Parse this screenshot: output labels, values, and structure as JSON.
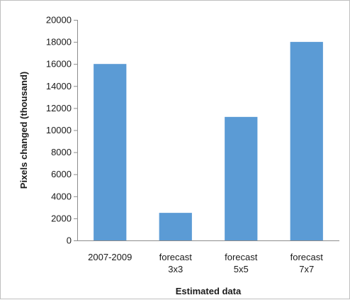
{
  "chart_data": {
    "type": "bar",
    "categories": [
      [
        "2007-2009"
      ],
      [
        "forecast",
        "3x3"
      ],
      [
        "forecast",
        "5x5"
      ],
      [
        "forecast",
        "7x7"
      ]
    ],
    "values": [
      16000,
      2500,
      11200,
      18000
    ],
    "title": "",
    "xlabel": "Estimated data",
    "ylabel": "Pixels changed (thousand)",
    "ylim": [
      0,
      20000
    ],
    "yticks": [
      "0",
      "2000",
      "4000",
      "6000",
      "8000",
      "10000",
      "12000",
      "14000",
      "16000",
      "18000",
      "20000"
    ],
    "grid": false,
    "legend": "none",
    "bar_color": "#5b9bd5"
  }
}
